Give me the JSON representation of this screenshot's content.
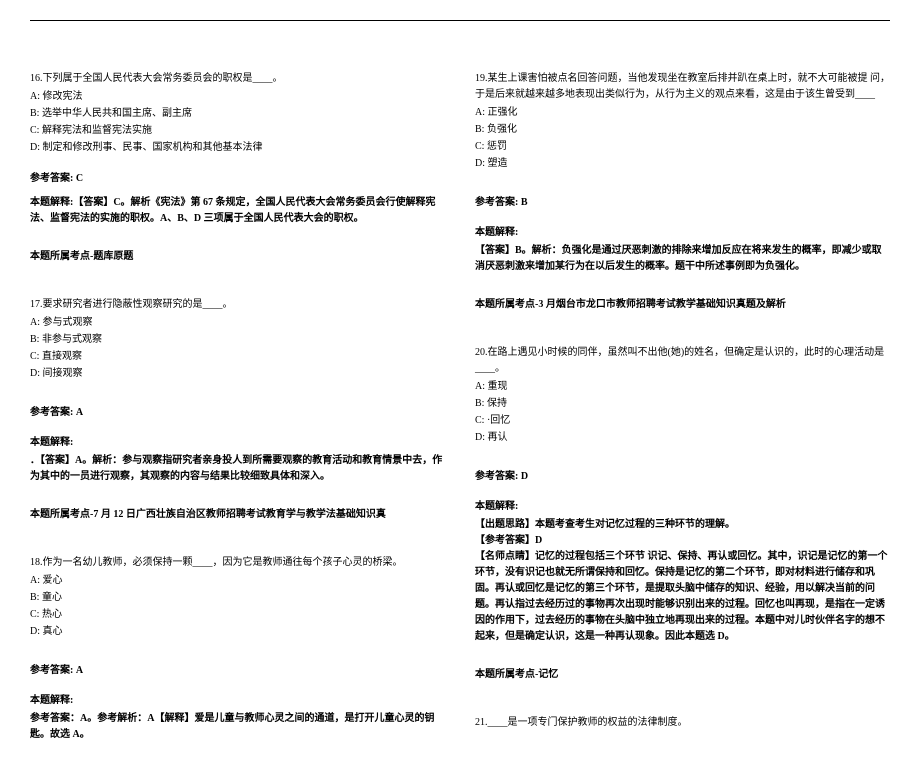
{
  "left": {
    "q16": {
      "stem": "16.下列属于全国人民代表大会常务委员会的职权是____。",
      "opts": {
        "A": "A: 修改宪法",
        "B": "B: 选举中华人民共和国主席、副主席",
        "C": "C: 解释宪法和监督宪法实施",
        "D": "D: 制定和修改刑事、民事、国家机构和其他基本法律"
      },
      "ansLabel": "参考答案: C",
      "explain": "本题解释:【答案】C。解析《宪法》第 67 条规定，全国人民代表大会常务委员会行使解释宪法、监督宪法的实施的职权。A、B、D 三项属于全国人民代表大会的职权。",
      "topic": "本题所属考点-题库原题"
    },
    "q17": {
      "stem": "17.要求研究者进行隐蔽性观察研究的是____。",
      "opts": {
        "A": "A: 参与式观察",
        "B": "B: 非参与式观察",
        "C": "C: 直接观察",
        "D": "D: 间接观察"
      },
      "ansLabel": "参考答案: A",
      "explainLabel": "本题解释:",
      "explain": "．【答案】A。解析：参与观察指研究者亲身投人到所需要观察的教育活动和教育情景中去，作为其中的一员进行观察，其观察的内容与结果比较细致具体和深入。",
      "topic": "本题所属考点-7 月 12 日广西壮族自治区教师招聘考试教育学与教学法基础知识真"
    },
    "q18": {
      "stem": "18.作为一名幼儿教师，必须保持一颗____，因为它是教师通往每个孩子心灵的桥梁。",
      "opts": {
        "A": "A: 爱心",
        "B": "B: 童心",
        "C": "C: 热心",
        "D": "D: 真心"
      },
      "ansLabel": "参考答案: A",
      "explainLabel": "本题解释:",
      "explain": "参考答案：A。参考解析：A【解释】爱是儿童与教师心灵之间的通道，是打开儿童心灵的钥匙。故选 A。"
    }
  },
  "right": {
    "q19": {
      "stem": "19.某生上课害怕被点名回答问题，当他发现坐在教室后排并趴在桌上时，就不大可能被提 问，于是后来就越来越多地表现出类似行为，从行为主义的观点来看，这是由于该生曾受到____",
      "opts": {
        "A": "A: 正强化",
        "B": "B: 负强化",
        "C": "C: 惩罚",
        "D": "D: 塑造"
      },
      "ansLabel": "参考答案: B",
      "explainLabel": "本题解释:",
      "explain": "【答案】B。解析：负强化是通过厌恶刺激的排除来增加反应在将来发生的概率，即减少或取消厌恶刺激来增加某行为在以后发生的概率。题干中所述事例即为负强化。",
      "topic": "本题所属考点-3 月烟台市龙口市教师招聘考试教学基础知识真题及解析"
    },
    "q20": {
      "stem": "20.在路上遇见小时候的同伴，虽然叫不出他(她)的姓名，但确定是认识的，此时的心理活动是____。",
      "opts": {
        "A": "A: 重现",
        "B": "B: 保持",
        "C": "C: ·回忆",
        "D": "D: 再认"
      },
      "ansLabel": "参考答案: D",
      "explainLabel": "本题解释:",
      "explainLine1": "【出题思路】本题考查考生对记忆过程的三种环节的理解。",
      "explainLine2": "【参考答案】D",
      "explain": "【名师点睛】记忆的过程包括三个环节 识记、保持、再认或回忆。其中，识记是记忆的第一个环节，没有识记也就无所谓保持和回忆。保持是记忆的第二个环节，即对材料进行储存和巩固。再认或回忆是记忆的第三个环节，是提取头脑中储存的知识、经验，用以解决当前的问题。再认指过去经历过的事物再次出现时能够识别出来的过程。回忆也叫再现，是指在一定诱因的作用下，过去经历的事物在头脑中独立地再现出来的过程。本题中对儿时伙伴名字的想不起来，但是确定认识，这是一种再认现象。因此本题选 D。",
      "topic": "本题所属考点-记忆"
    },
    "q21": {
      "stem": "21.____是一项专门保护教师的权益的法律制度。"
    }
  }
}
